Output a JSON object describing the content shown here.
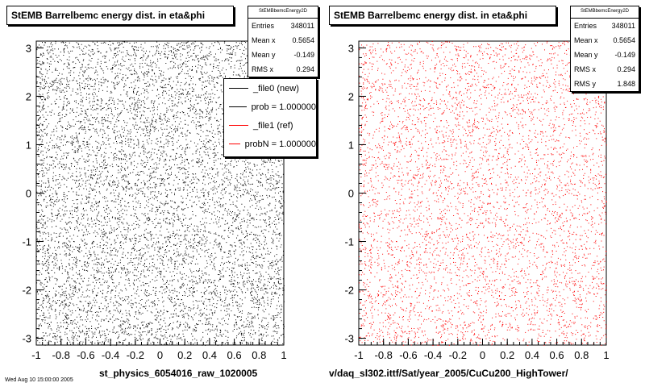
{
  "chart_data": [
    {
      "type": "scatter",
      "title": "StEMB Barrelbemc energy dist. in eta&phi",
      "xlabel": "st_physics_6054016_raw_1020005",
      "xlim": [
        -1,
        1
      ],
      "ylim": [
        -3.14,
        3.14
      ],
      "xticks": [
        "-1",
        "-0.8",
        "-0.6",
        "-0.4",
        "-0.2",
        "0",
        "0.2",
        "0.4",
        "0.6",
        "0.8",
        "1"
      ],
      "yticks": [
        "3",
        "2",
        "1",
        "0",
        "-1",
        "-2",
        "-3"
      ],
      "marker_color": "#000000",
      "stats": {
        "name": "StEMBbemcEnergy2D",
        "rows": [
          {
            "label": "Entries",
            "value": "348011"
          },
          {
            "label": "Mean x",
            "value": "0.5654"
          },
          {
            "label": "Mean y",
            "value": "-0.149"
          },
          {
            "label": "RMS x",
            "value": "0.294"
          }
        ]
      },
      "legend": [
        {
          "label": "_file0 (new)",
          "color": "#000000"
        },
        {
          "label": "prob = 1.000000",
          "color": "#000000"
        },
        {
          "label": "_file1 (ref)",
          "color": "#ff0000"
        },
        {
          "label": "probN = 1.000000",
          "color": "#ff0000"
        }
      ]
    },
    {
      "type": "scatter",
      "title": "StEMB Barrelbemc energy dist. in eta&phi",
      "xlabel": "v/daq_sl302.ittf/Sat/year_2005/CuCu200_HighTower/",
      "xlim": [
        -1,
        1
      ],
      "ylim": [
        -3.14,
        3.14
      ],
      "xticks": [
        "-1",
        "-0.8",
        "-0.6",
        "-0.4",
        "-0.2",
        "0",
        "0.2",
        "0.4",
        "0.6",
        "0.8",
        "1"
      ],
      "yticks": [
        "3",
        "2",
        "1",
        "0",
        "-1",
        "-2",
        "-3"
      ],
      "marker_color": "#ff0000",
      "stats": {
        "name": "StEMBbemcEnergy2D",
        "rows": [
          {
            "label": "Entries",
            "value": "348011"
          },
          {
            "label": "Mean x",
            "value": "0.5654"
          },
          {
            "label": "Mean y",
            "value": "-0.149"
          },
          {
            "label": "RMS x",
            "value": "0.294"
          },
          {
            "label": "RMS y",
            "value": "1.848"
          }
        ]
      }
    }
  ],
  "footer": {
    "timestamp": "Wed Aug 10 15:00:00 2005"
  }
}
